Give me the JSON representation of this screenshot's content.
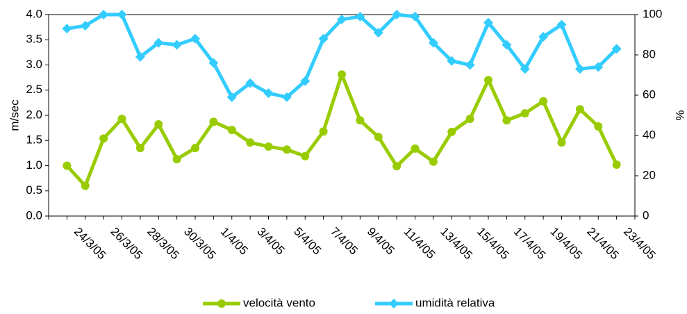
{
  "chart_data": {
    "type": "line",
    "ylabel": "m/sec",
    "y2label": "%",
    "categories": [
      null,
      null,
      "24/3/05",
      null,
      "26/3/05",
      null,
      "28/3/05",
      null,
      "30/3/05",
      null,
      "1/4/05",
      null,
      "3/4/05",
      null,
      "5/4/05",
      null,
      "7/4/05",
      null,
      "9/4/05",
      null,
      "11/4/05",
      null,
      "13/4/05",
      null,
      "15/4/05",
      null,
      "17/4/05",
      null,
      "19/4/05",
      null,
      "21/4/05",
      null,
      "23/4/05"
    ],
    "series": [
      {
        "name": "velocità vento",
        "color": "#99cc00",
        "marker": "circle",
        "axis": "y",
        "values": [
          null,
          1.0,
          0.6,
          1.54,
          1.93,
          1.35,
          1.82,
          1.13,
          1.35,
          1.87,
          1.71,
          1.46,
          1.38,
          1.32,
          1.19,
          1.68,
          2.81,
          1.9,
          1.57,
          0.99,
          1.34,
          1.08,
          1.67,
          1.93,
          2.7,
          1.9,
          2.04,
          2.28,
          1.46,
          2.12,
          1.78,
          1.02,
          null
        ]
      },
      {
        "name": "umidità relativa",
        "color": "#33ccff",
        "marker": "diamond",
        "axis": "y2",
        "values": [
          null,
          93,
          94.5,
          100,
          100,
          79,
          86,
          85,
          88,
          76,
          59,
          66,
          61,
          59,
          67,
          88,
          97.6,
          99,
          91,
          100,
          99,
          86,
          77,
          75,
          96,
          85,
          73,
          89,
          95,
          73,
          74,
          83,
          null
        ]
      }
    ],
    "ylim": [
      0,
      4
    ],
    "yticks": [
      {
        "value": 0,
        "label": "0.0"
      },
      {
        "value": 0.5,
        "label": "0.5"
      },
      {
        "value": 1,
        "label": "1.0"
      },
      {
        "value": 1.5,
        "label": "1.5"
      },
      {
        "value": 2,
        "label": "2.0"
      },
      {
        "value": 2.5,
        "label": "2.5"
      },
      {
        "value": 3,
        "label": "3.0"
      },
      {
        "value": 3.5,
        "label": "3.5"
      },
      {
        "value": 4,
        "label": "4.0"
      }
    ],
    "y2lim": [
      0,
      100
    ],
    "y2ticks": [
      0,
      20,
      40,
      60,
      80,
      100
    ],
    "legend": "bottom"
  }
}
